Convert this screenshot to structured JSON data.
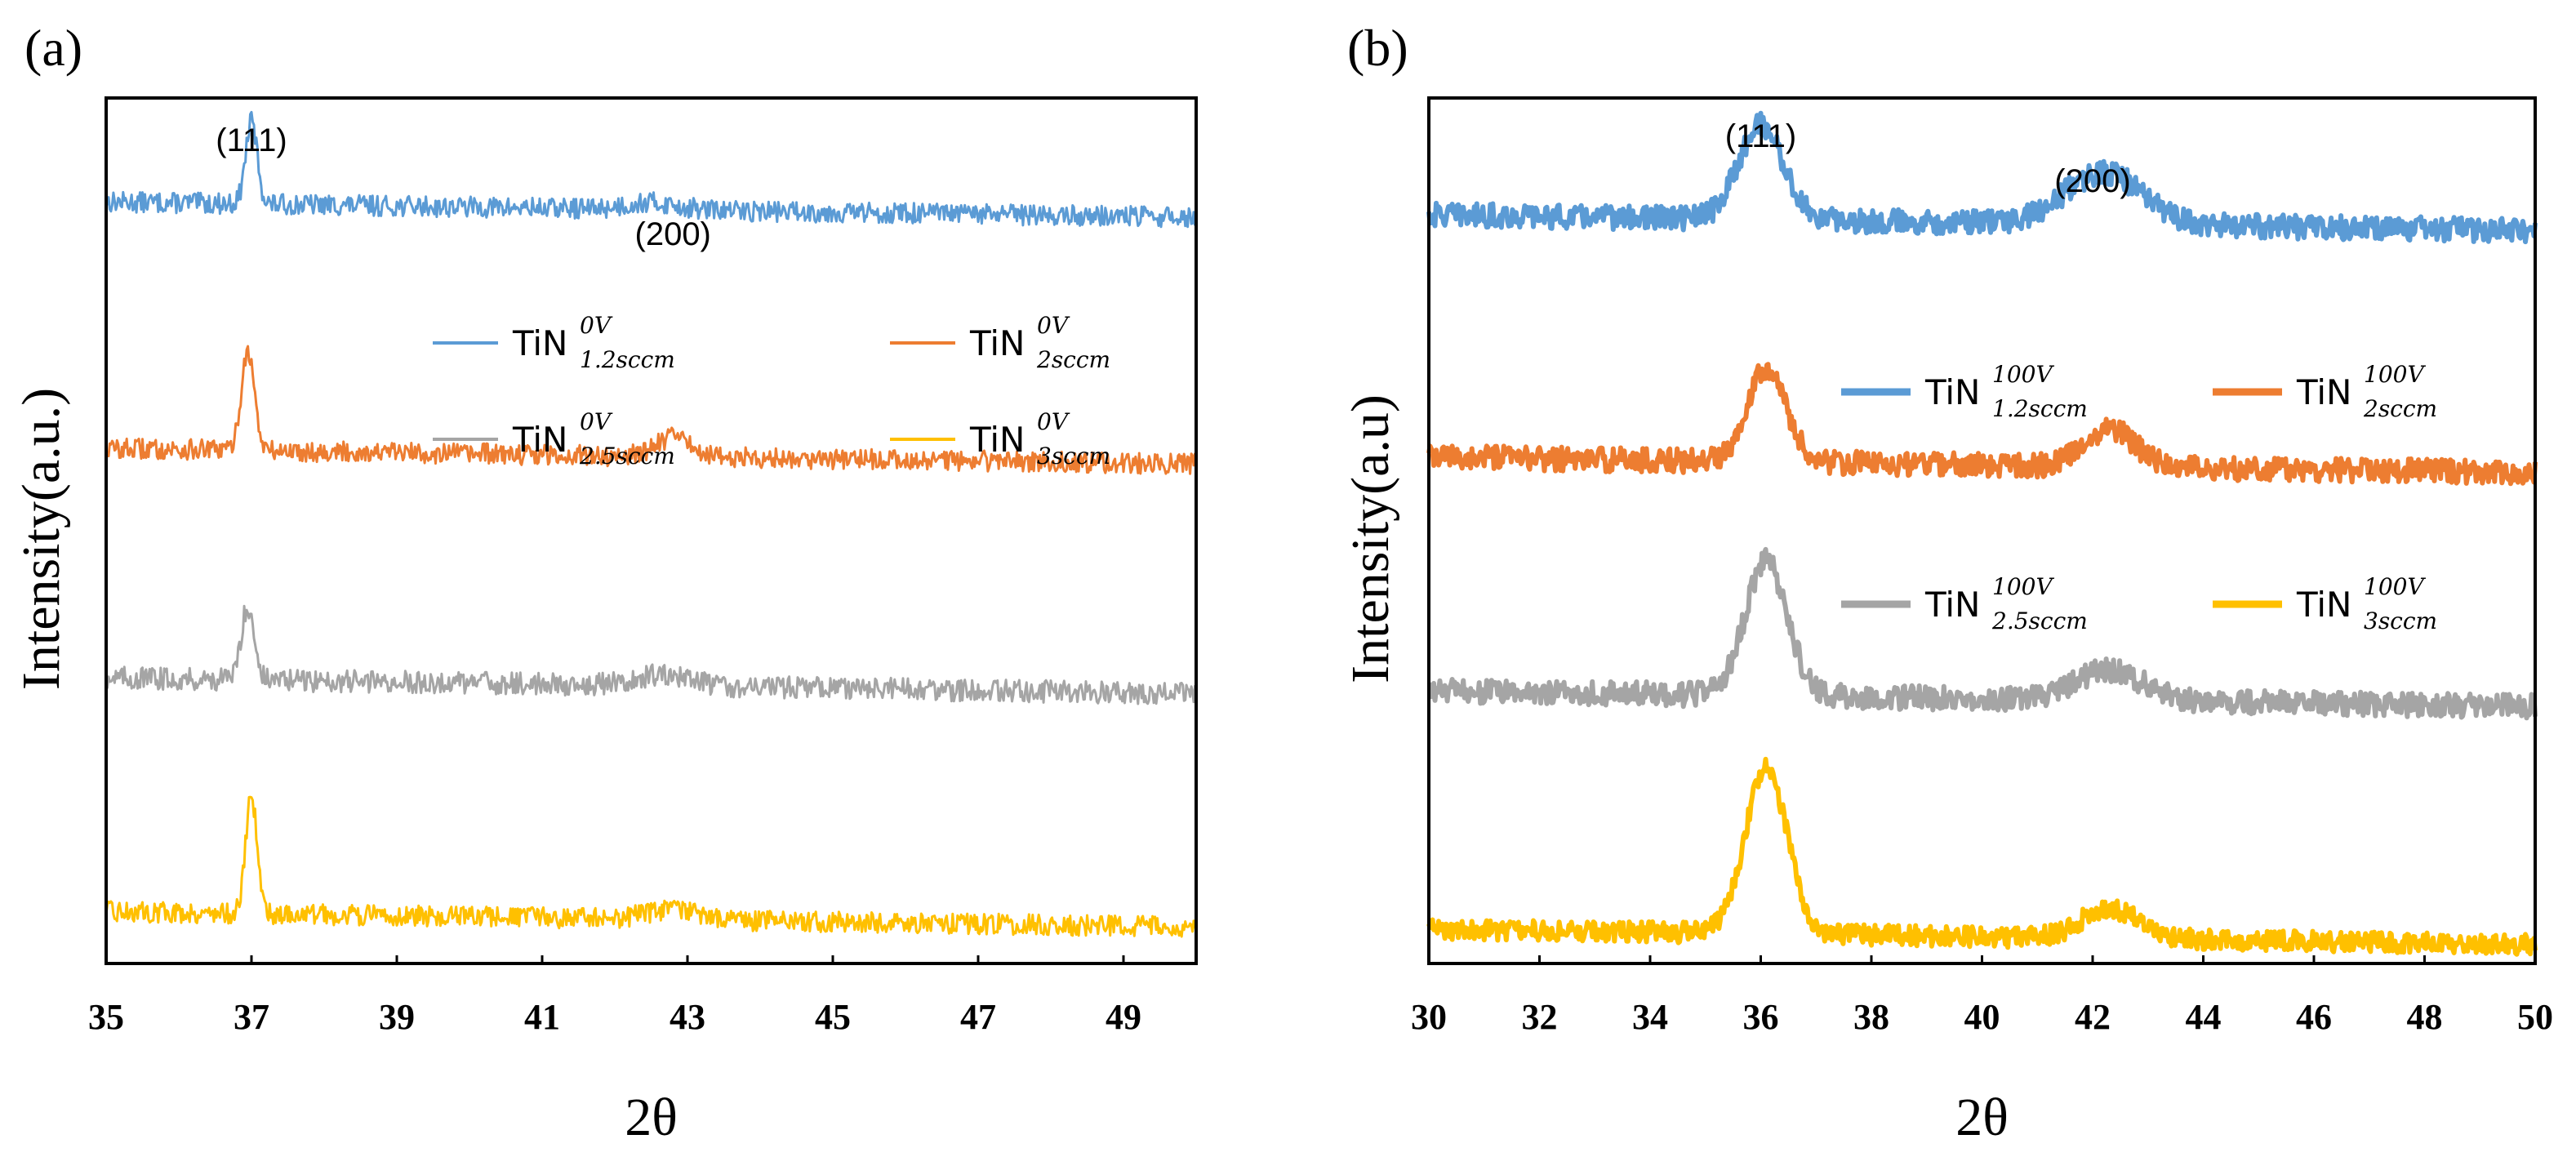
{
  "colors": {
    "blue": "#5b9bd5",
    "orange": "#ed7d31",
    "gray": "#a5a5a5",
    "gold": "#ffc000"
  },
  "chart_data": [
    {
      "panel_label": "(a)",
      "type": "line",
      "xlabel": "2θ",
      "ylabel": "Intensity(a.u.)",
      "xlim": [
        35,
        50
      ],
      "xticks": [
        35,
        37,
        39,
        41,
        43,
        45,
        47,
        49
      ],
      "y_axis_ticks": "none",
      "legend_position": "center",
      "peak_annotations": [
        {
          "label": "(111)",
          "two_theta": 37.0
        },
        {
          "label": "(200)",
          "two_theta": 42.8
        }
      ],
      "series": [
        {
          "name": "TiN",
          "sup": "0V",
          "sub": "1.2sccm",
          "color": "#5b9bd5",
          "baseline": 0.88,
          "noise": 0.012,
          "peaks": [
            {
              "center": 37.0,
              "height": 0.095,
              "width": 0.08
            },
            {
              "center": 42.5,
              "height": 0.008,
              "width": 0.35
            }
          ]
        },
        {
          "name": "TiN",
          "sup": "0V",
          "sub": "2sccm",
          "color": "#ed7d31",
          "baseline": 0.595,
          "noise": 0.012,
          "peaks": [
            {
              "center": 36.95,
              "height": 0.115,
              "width": 0.09
            },
            {
              "center": 42.8,
              "height": 0.022,
              "width": 0.25
            }
          ]
        },
        {
          "name": "TiN",
          "sup": "0V",
          "sub": "2.5sccm",
          "color": "#a5a5a5",
          "baseline": 0.33,
          "noise": 0.013,
          "peaks": [
            {
              "center": 36.95,
              "height": 0.085,
              "width": 0.09
            },
            {
              "center": 42.6,
              "height": 0.012,
              "width": 0.4
            }
          ]
        },
        {
          "name": "TiN",
          "sup": "0V",
          "sub": "3sccm",
          "color": "#ffc000",
          "baseline": 0.06,
          "noise": 0.012,
          "peaks": [
            {
              "center": 37.0,
              "height": 0.135,
              "width": 0.08
            },
            {
              "center": 42.8,
              "height": 0.012,
              "width": 0.35
            }
          ]
        }
      ],
      "legend": [
        {
          "name": "TiN",
          "sup": "0V",
          "sub": "1.2sccm",
          "color": "#5b9bd5"
        },
        {
          "name": "TiN",
          "sup": "0V",
          "sub": "2sccm",
          "color": "#ed7d31"
        },
        {
          "name": "TiN",
          "sup": "0V",
          "sub": "2.5sccm",
          "color": "#a5a5a5"
        },
        {
          "name": "TiN",
          "sup": "0V",
          "sub": "3sccm",
          "color": "#ffc000"
        }
      ]
    },
    {
      "panel_label": "(b)",
      "type": "line",
      "xlabel": "2θ",
      "ylabel": "Intensity(a.u)",
      "xlim": [
        30,
        50
      ],
      "xticks": [
        30,
        32,
        34,
        36,
        38,
        40,
        42,
        44,
        46,
        48,
        50
      ],
      "y_axis_ticks": "none",
      "legend_position": "right",
      "peak_annotations": [
        {
          "label": "(111)",
          "two_theta": 36.0
        },
        {
          "label": "(200)",
          "two_theta": 42.0
        }
      ],
      "series": [
        {
          "name": "TiN",
          "sup": "100V",
          "sub": "1.2sccm",
          "color": "#5b9bd5",
          "baseline": 0.865,
          "noise": 0.014,
          "peaks": [
            {
              "center": 36.0,
              "height": 0.11,
              "width": 0.4
            },
            {
              "center": 42.2,
              "height": 0.06,
              "width": 0.7
            }
          ]
        },
        {
          "name": "TiN",
          "sup": "100V",
          "sub": "2sccm",
          "color": "#ed7d31",
          "baseline": 0.585,
          "noise": 0.014,
          "peaks": [
            {
              "center": 36.1,
              "height": 0.11,
              "width": 0.35
            },
            {
              "center": 42.3,
              "height": 0.045,
              "width": 0.45
            }
          ]
        },
        {
          "name": "TiN",
          "sup": "100V",
          "sub": "2.5sccm",
          "color": "#a5a5a5",
          "baseline": 0.315,
          "noise": 0.014,
          "peaks": [
            {
              "center": 36.1,
              "height": 0.155,
              "width": 0.38
            },
            {
              "center": 42.3,
              "height": 0.035,
              "width": 0.6
            }
          ]
        },
        {
          "name": "TiN",
          "sup": "100V",
          "sub": "3sccm",
          "color": "#ffc000",
          "baseline": 0.04,
          "noise": 0.012,
          "peaks": [
            {
              "center": 36.1,
              "height": 0.19,
              "width": 0.38
            },
            {
              "center": 42.3,
              "height": 0.035,
              "width": 0.5
            }
          ]
        }
      ],
      "legend": [
        {
          "name": "TiN",
          "sup": "100V",
          "sub": "1.2sccm",
          "color": "#5b9bd5"
        },
        {
          "name": "TiN",
          "sup": "100V",
          "sub": "2sccm",
          "color": "#ed7d31"
        },
        {
          "name": "TiN",
          "sup": "100V",
          "sub": "2.5sccm",
          "color": "#a5a5a5"
        },
        {
          "name": "TiN",
          "sup": "100V",
          "sub": "3sccm",
          "color": "#ffc000"
        }
      ]
    }
  ]
}
